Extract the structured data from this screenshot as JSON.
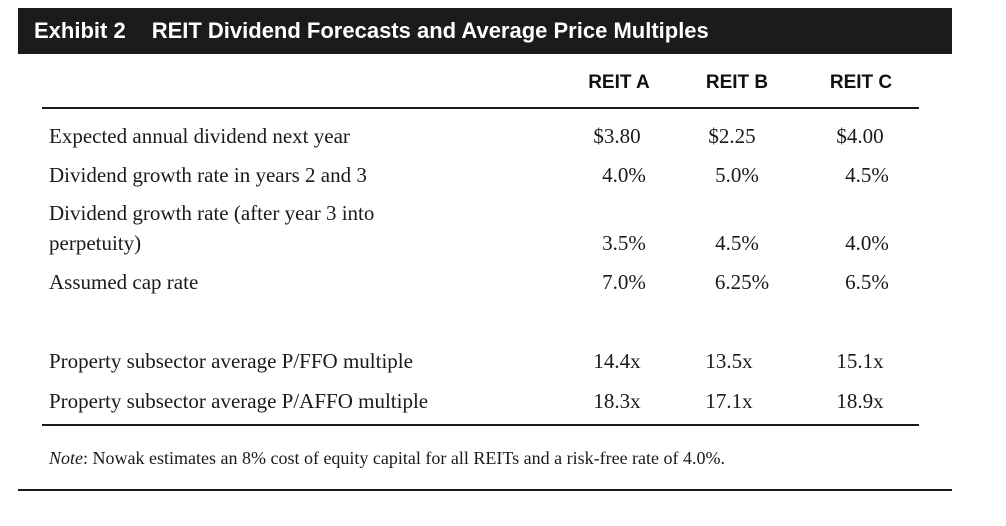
{
  "exhibit": {
    "label": "Exhibit 2",
    "title": "REIT Dividend Forecasts and Average Price Multiples"
  },
  "columns": [
    "REIT A",
    "REIT B",
    "REIT C"
  ],
  "rows": [
    {
      "label": "Expected annual dividend next year",
      "values": [
        "$3.80",
        "$2.25",
        "$4.00"
      ]
    },
    {
      "label": "Dividend growth rate in years 2 and 3",
      "values": [
        "4.0%",
        "5.0%",
        "4.5%"
      ]
    },
    {
      "label_line1": "Dividend growth rate (after year 3 into",
      "label_line2": "perpetuity)",
      "values": [
        "3.5%",
        "4.5%",
        "4.0%"
      ]
    },
    {
      "label": "Assumed cap rate",
      "values": [
        "7.0%",
        "6.25%",
        "6.5%"
      ]
    },
    {
      "label": "Property subsector average P/FFO multiple",
      "values": [
        "14.4x",
        "13.5x",
        "15.1x"
      ]
    },
    {
      "label": "Property subsector average P/AFFO multiple",
      "values": [
        "18.3x",
        "17.1x",
        "18.9x"
      ]
    }
  ],
  "note": {
    "lead": "Note",
    "text": ": Nowak estimates an 8% cost of equity capital for all REITs and a risk-free rate of 4.0%."
  }
}
